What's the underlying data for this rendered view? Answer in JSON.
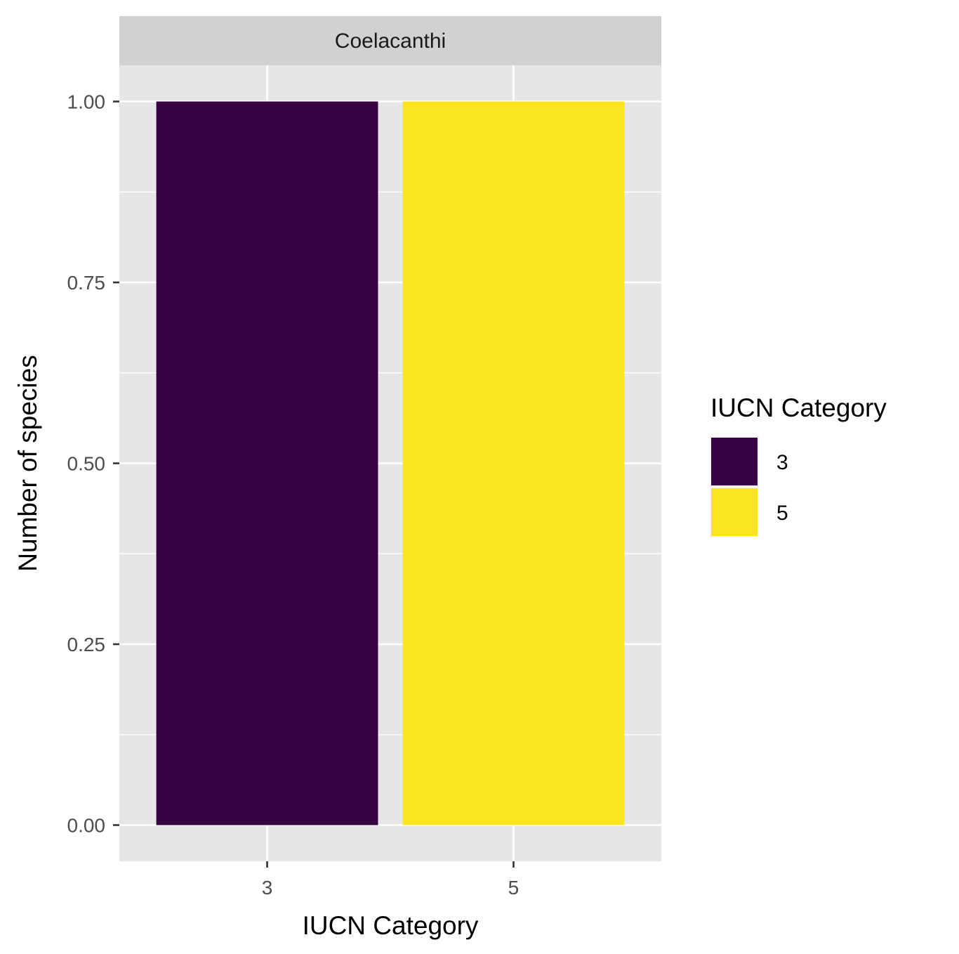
{
  "chart_data": {
    "type": "bar",
    "facet": "Coelacanthi",
    "categories": [
      "3",
      "5"
    ],
    "values": [
      1,
      1
    ],
    "colors": [
      "#360042",
      "#FBE51F"
    ],
    "xlabel": "IUCN Category",
    "ylabel": "Number of species",
    "ylim": [
      -0.05,
      1.05
    ],
    "yticks": [
      0,
      0.25,
      0.5,
      0.75,
      1
    ],
    "ytick_labels": [
      "0.00",
      "0.25",
      "0.50",
      "0.75",
      "1.00"
    ],
    "grid": true,
    "legend": {
      "title": "IUCN Category",
      "position": "right",
      "items": [
        {
          "label": "3",
          "color": "#360042"
        },
        {
          "label": "5",
          "color": "#FBE51F"
        }
      ]
    },
    "theme": {
      "panel_background": "#E6E6E6",
      "strip_background": "#D1D1D1",
      "grid_color": "#FFFFFF"
    }
  }
}
